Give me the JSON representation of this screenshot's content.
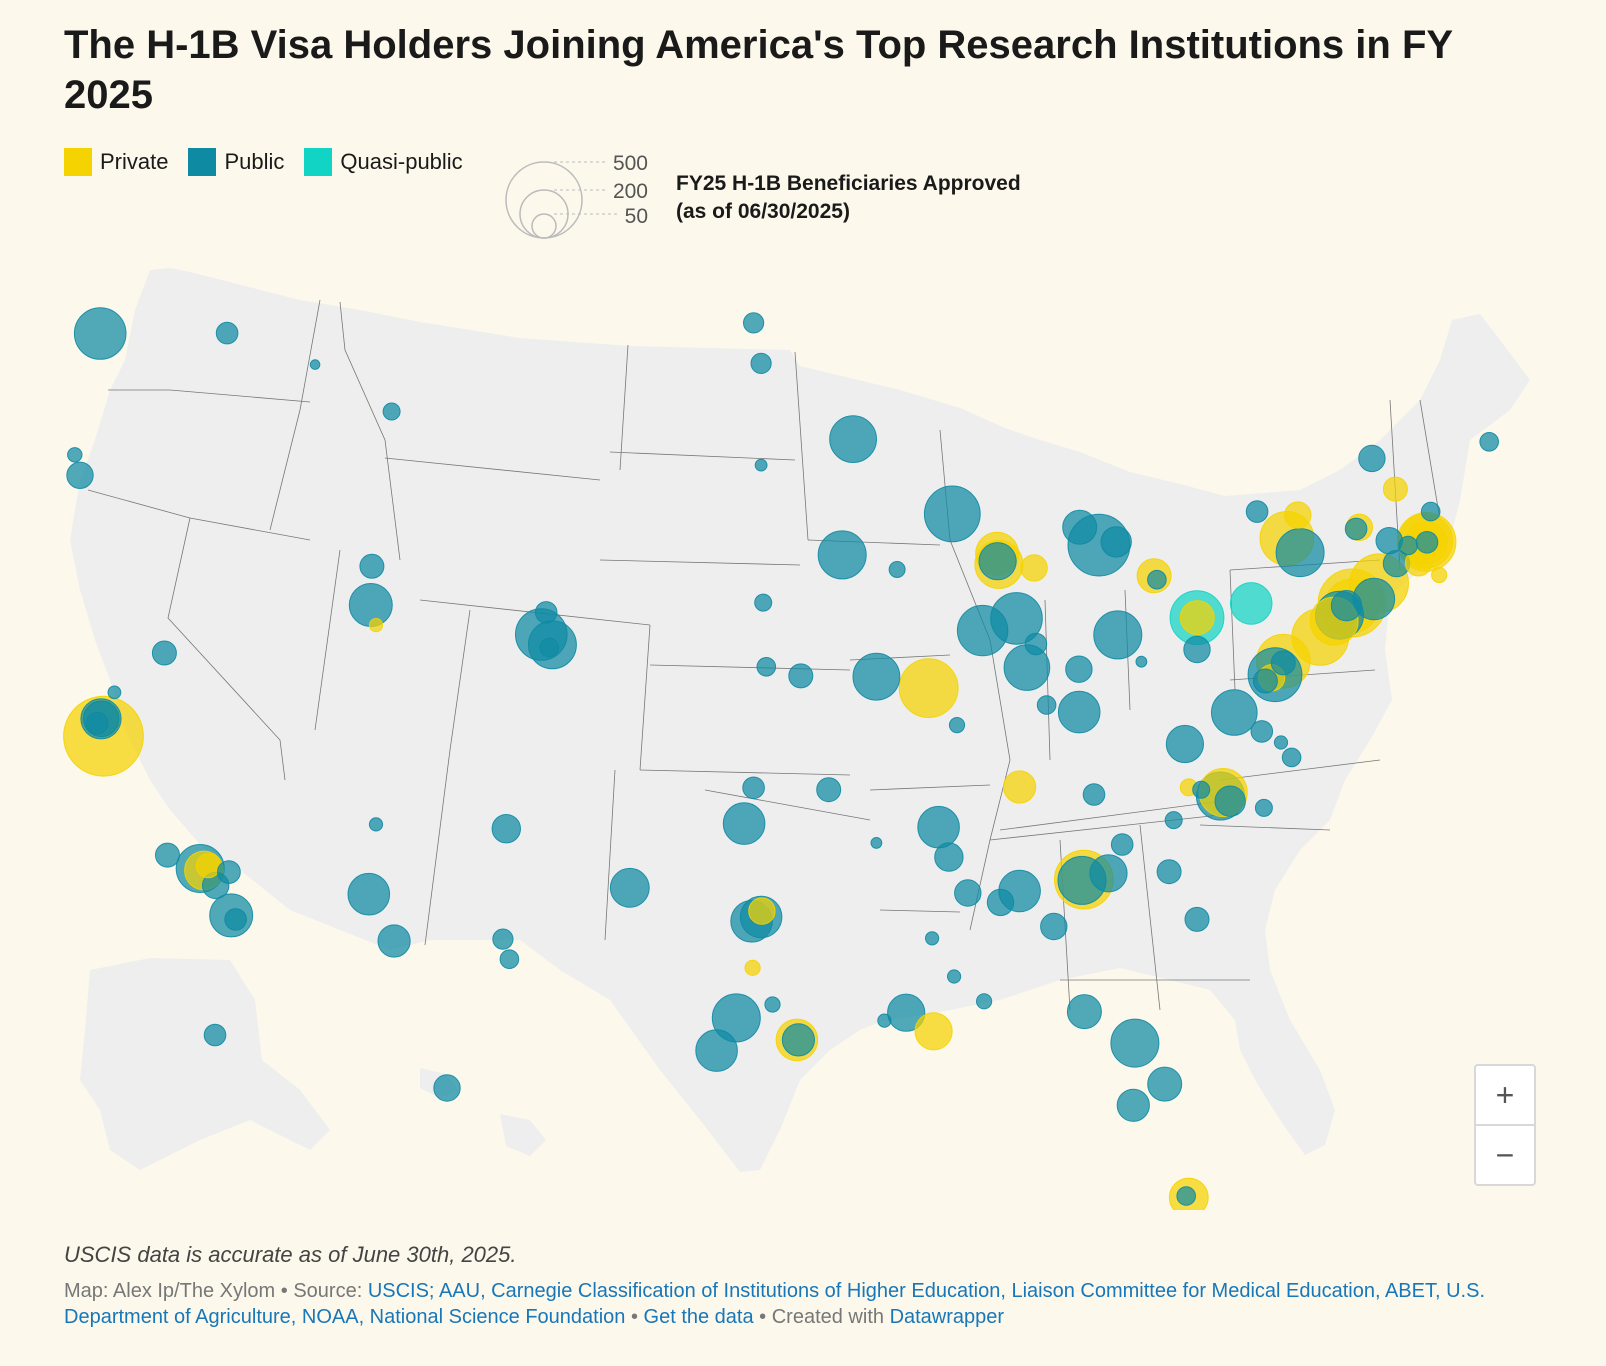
{
  "title": "The H-1B Visa Holders Joining America's Top Research Institutions in FY 2025",
  "colors": {
    "private": "#f5d300",
    "public": "#0f8aa3",
    "quasi_public": "#12d4c4",
    "land": "#eeeeee",
    "border": "#777777",
    "background": "#fcf8ec"
  },
  "legend": {
    "categories": [
      {
        "name": "private",
        "label": "Private",
        "color": "#f5d300"
      },
      {
        "name": "public",
        "label": "Public",
        "color": "#0f8aa3"
      },
      {
        "name": "quasi-public",
        "label": "Quasi-public",
        "color": "#12d4c4"
      }
    ],
    "size_values": [
      "500",
      "200",
      "50"
    ],
    "size_title_line1": "FY25 H-1B Beneficiaries Approved",
    "size_title_line2": "(as of 06/30/2025)"
  },
  "zoom": {
    "in_label": "+",
    "out_label": "−"
  },
  "note": "USCIS data is accurate as of June 30th, 2025.",
  "footer": {
    "map_credit": "Map: Alex Ip/The Xylom",
    "sep1": " • Source: ",
    "sources": "USCIS; AAU, Carnegie Classification of Institutions of Higher Education, Liaison Committee for Medical Education, ABET, U.S. Department of Agriculture, NOAA, National Science Foundation",
    "sep2": " • ",
    "get_data": "Get the data",
    "sep3": " • Created with ",
    "datawrapper": "Datawrapper"
  },
  "map_data": {
    "scale": "sqrt",
    "points": [
      {
        "lon": -122.3,
        "lat": 47.65,
        "type": "public",
        "value": 230
      },
      {
        "lon": -117.4,
        "lat": 47.66,
        "type": "public",
        "value": 40
      },
      {
        "lon": -123.08,
        "lat": 44.05,
        "type": "public",
        "value": 60
      },
      {
        "lon": -123.28,
        "lat": 44.57,
        "type": "public",
        "value": 18
      },
      {
        "lon": -111.05,
        "lat": 45.67,
        "type": "public",
        "value": 25
      },
      {
        "lon": -114.0,
        "lat": 46.86,
        "type": "public",
        "value": 8
      },
      {
        "lon": -122.27,
        "lat": 37.87,
        "type": "public",
        "value": 140
      },
      {
        "lon": -122.17,
        "lat": 37.43,
        "type": "private",
        "value": 550
      },
      {
        "lon": -122.26,
        "lat": 37.87,
        "type": "public",
        "value": 110
      },
      {
        "lon": -122.42,
        "lat": 37.76,
        "type": "public",
        "value": 40
      },
      {
        "lon": -121.75,
        "lat": 38.54,
        "type": "public",
        "value": 14
      },
      {
        "lon": -119.7,
        "lat": 34.41,
        "type": "public",
        "value": 50
      },
      {
        "lon": -118.44,
        "lat": 34.07,
        "type": "public",
        "value": 200
      },
      {
        "lon": -118.29,
        "lat": 34.02,
        "type": "private",
        "value": 130
      },
      {
        "lon": -118.13,
        "lat": 34.14,
        "type": "private",
        "value": 50
      },
      {
        "lon": -117.84,
        "lat": 33.64,
        "type": "public",
        "value": 60
      },
      {
        "lon": -117.33,
        "lat": 33.98,
        "type": "public",
        "value": 45
      },
      {
        "lon": -117.24,
        "lat": 32.88,
        "type": "public",
        "value": 160
      },
      {
        "lon": -117.07,
        "lat": 32.78,
        "type": "public",
        "value": 40
      },
      {
        "lon": -119.82,
        "lat": 39.54,
        "type": "public",
        "value": 50
      },
      {
        "lon": -111.85,
        "lat": 40.76,
        "type": "public",
        "value": 160
      },
      {
        "lon": -111.81,
        "lat": 41.74,
        "type": "public",
        "value": 50
      },
      {
        "lon": -111.65,
        "lat": 40.25,
        "type": "private",
        "value": 15
      },
      {
        "lon": -111.93,
        "lat": 33.42,
        "type": "public",
        "value": 150
      },
      {
        "lon": -110.95,
        "lat": 32.23,
        "type": "public",
        "value": 90
      },
      {
        "lon": -111.65,
        "lat": 35.19,
        "type": "public",
        "value": 15
      },
      {
        "lon": -106.62,
        "lat": 35.08,
        "type": "public",
        "value": 70
      },
      {
        "lon": -106.75,
        "lat": 32.28,
        "type": "public",
        "value": 35
      },
      {
        "lon": -106.5,
        "lat": 31.77,
        "type": "public",
        "value": 30
      },
      {
        "lon": -105.27,
        "lat": 40.01,
        "type": "public",
        "value": 230
      },
      {
        "lon": -105.08,
        "lat": 40.57,
        "type": "public",
        "value": 40
      },
      {
        "lon": -104.84,
        "lat": 39.75,
        "type": "public",
        "value": 200
      },
      {
        "lon": -104.96,
        "lat": 39.68,
        "type": "public",
        "value": 30
      },
      {
        "lon": -101.85,
        "lat": 33.58,
        "type": "public",
        "value": 130
      },
      {
        "lon": -98.5,
        "lat": 29.45,
        "type": "public",
        "value": 150
      },
      {
        "lon": -97.74,
        "lat": 30.28,
        "type": "public",
        "value": 200
      },
      {
        "lon": -97.15,
        "lat": 32.73,
        "type": "public",
        "value": 150
      },
      {
        "lon": -96.78,
        "lat": 32.84,
        "type": "public",
        "value": 150
      },
      {
        "lon": -96.75,
        "lat": 32.99,
        "type": "private",
        "value": 60
      },
      {
        "lon": -96.34,
        "lat": 30.62,
        "type": "public",
        "value": 20
      },
      {
        "lon": -95.4,
        "lat": 29.72,
        "type": "private",
        "value": 150
      },
      {
        "lon": -95.34,
        "lat": 29.72,
        "type": "public",
        "value": 90
      },
      {
        "lon": -97.11,
        "lat": 31.55,
        "type": "private",
        "value": 20
      },
      {
        "lon": -97.44,
        "lat": 35.21,
        "type": "public",
        "value": 150
      },
      {
        "lon": -97.07,
        "lat": 36.12,
        "type": "public",
        "value": 40
      },
      {
        "lon": -96.7,
        "lat": 40.82,
        "type": "public",
        "value": 25
      },
      {
        "lon": -96.58,
        "lat": 39.19,
        "type": "public",
        "value": 30
      },
      {
        "lon": -95.25,
        "lat": 38.96,
        "type": "public",
        "value": 50
      },
      {
        "lon": -96.78,
        "lat": 46.89,
        "type": "public",
        "value": 35
      },
      {
        "lon": -97.07,
        "lat": 47.92,
        "type": "public",
        "value": 35
      },
      {
        "lon": -96.78,
        "lat": 44.31,
        "type": "public",
        "value": 12
      },
      {
        "lon": -93.23,
        "lat": 44.97,
        "type": "public",
        "value": 190
      },
      {
        "lon": -89.4,
        "lat": 43.07,
        "type": "public",
        "value": 270
      },
      {
        "lon": -87.6,
        "lat": 41.79,
        "type": "private",
        "value": 200
      },
      {
        "lon": -87.67,
        "lat": 42.06,
        "type": "private",
        "value": 160
      },
      {
        "lon": -87.65,
        "lat": 41.87,
        "type": "public",
        "value": 120
      },
      {
        "lon": -88.23,
        "lat": 40.11,
        "type": "public",
        "value": 220
      },
      {
        "lon": -91.53,
        "lat": 41.66,
        "type": "public",
        "value": 22
      },
      {
        "lon": -93.65,
        "lat": 42.03,
        "type": "public",
        "value": 200
      },
      {
        "lon": -92.33,
        "lat": 38.94,
        "type": "public",
        "value": 190
      },
      {
        "lon": -90.31,
        "lat": 38.65,
        "type": "private",
        "value": 300
      },
      {
        "lon": -89.22,
        "lat": 37.71,
        "type": "public",
        "value": 20
      },
      {
        "lon": -86.92,
        "lat": 40.42,
        "type": "public",
        "value": 230
      },
      {
        "lon": -86.52,
        "lat": 39.17,
        "type": "public",
        "value": 180
      },
      {
        "lon": -86.24,
        "lat": 41.7,
        "type": "private",
        "value": 60
      },
      {
        "lon": -86.17,
        "lat": 39.77,
        "type": "public",
        "value": 40
      },
      {
        "lon": -83.74,
        "lat": 42.28,
        "type": "public",
        "value": 330
      },
      {
        "lon": -84.48,
        "lat": 42.73,
        "type": "public",
        "value": 100
      },
      {
        "lon": -83.07,
        "lat": 42.36,
        "type": "public",
        "value": 80
      },
      {
        "lon": -83.01,
        "lat": 40.0,
        "type": "public",
        "value": 200
      },
      {
        "lon": -81.61,
        "lat": 41.5,
        "type": "private",
        "value": 100
      },
      {
        "lon": -81.5,
        "lat": 41.4,
        "type": "public",
        "value": 30
      },
      {
        "lon": -84.51,
        "lat": 39.13,
        "type": "public",
        "value": 60
      },
      {
        "lon": -82.1,
        "lat": 39.32,
        "type": "public",
        "value": 10
      },
      {
        "lon": -79.95,
        "lat": 40.44,
        "type": "quasi-public",
        "value": 250
      },
      {
        "lon": -79.94,
        "lat": 40.44,
        "type": "private",
        "value": 100
      },
      {
        "lon": -77.86,
        "lat": 40.8,
        "type": "quasi-public",
        "value": 150
      },
      {
        "lon": -79.95,
        "lat": 39.63,
        "type": "public",
        "value": 60
      },
      {
        "lon": -75.19,
        "lat": 39.95,
        "type": "private",
        "value": 280
      },
      {
        "lon": -76.62,
        "lat": 39.33,
        "type": "private",
        "value": 250
      },
      {
        "lon": -76.94,
        "lat": 38.99,
        "type": "public",
        "value": 250
      },
      {
        "lon": -76.62,
        "lat": 39.29,
        "type": "public",
        "value": 50
      },
      {
        "lon": -77.07,
        "lat": 38.91,
        "type": "private",
        "value": 60
      },
      {
        "lon": -77.31,
        "lat": 38.83,
        "type": "public",
        "value": 50
      },
      {
        "lon": -78.51,
        "lat": 38.03,
        "type": "public",
        "value": 180
      },
      {
        "lon": -80.42,
        "lat": 37.23,
        "type": "public",
        "value": 120
      },
      {
        "lon": -77.45,
        "lat": 37.55,
        "type": "public",
        "value": 40
      },
      {
        "lon": -76.3,
        "lat": 36.89,
        "type": "public",
        "value": 30
      },
      {
        "lon": -76.71,
        "lat": 37.27,
        "type": "public",
        "value": 15
      },
      {
        "lon": -79.05,
        "lat": 35.91,
        "type": "public",
        "value": 200
      },
      {
        "lon": -78.94,
        "lat": 36.0,
        "type": "private",
        "value": 200
      },
      {
        "lon": -78.67,
        "lat": 35.78,
        "type": "public",
        "value": 80
      },
      {
        "lon": -80.27,
        "lat": 36.13,
        "type": "private",
        "value": 25
      },
      {
        "lon": -77.37,
        "lat": 35.61,
        "type": "public",
        "value": 25
      },
      {
        "lon": -80.85,
        "lat": 35.3,
        "type": "public",
        "value": 25
      },
      {
        "lon": -79.79,
        "lat": 36.07,
        "type": "public",
        "value": 25
      },
      {
        "lon": -76.06,
        "lat": 43.04,
        "type": "private",
        "value": 60
      },
      {
        "lon": -76.48,
        "lat": 42.45,
        "type": "private",
        "value": 250
      },
      {
        "lon": -77.63,
        "lat": 43.13,
        "type": "public",
        "value": 40
      },
      {
        "lon": -75.97,
        "lat": 42.09,
        "type": "public",
        "value": 200
      },
      {
        "lon": -73.68,
        "lat": 42.73,
        "type": "private",
        "value": 60
      },
      {
        "lon": -73.81,
        "lat": 42.69,
        "type": "public",
        "value": 40
      },
      {
        "lon": -73.96,
        "lat": 40.81,
        "type": "private",
        "value": 400
      },
      {
        "lon": -73.99,
        "lat": 40.73,
        "type": "private",
        "value": 250
      },
      {
        "lon": -74.45,
        "lat": 40.5,
        "type": "public",
        "value": 200
      },
      {
        "lon": -74.66,
        "lat": 40.35,
        "type": "private",
        "value": 200
      },
      {
        "lon": -74.18,
        "lat": 40.74,
        "type": "public",
        "value": 80
      },
      {
        "lon": -73.12,
        "lat": 40.91,
        "type": "public",
        "value": 150
      },
      {
        "lon": -72.92,
        "lat": 41.31,
        "type": "private",
        "value": 300
      },
      {
        "lon": -72.25,
        "lat": 41.81,
        "type": "public",
        "value": 60
      },
      {
        "lon": -71.4,
        "lat": 41.83,
        "type": "private",
        "value": 60
      },
      {
        "lon": -71.09,
        "lat": 42.36,
        "type": "private",
        "value": 300
      },
      {
        "lon": -71.12,
        "lat": 42.38,
        "type": "private",
        "value": 250
      },
      {
        "lon": -71.1,
        "lat": 42.34,
        "type": "private",
        "value": 150
      },
      {
        "lon": -71.07,
        "lat": 42.35,
        "type": "public",
        "value": 40
      },
      {
        "lon": -72.53,
        "lat": 42.39,
        "type": "public",
        "value": 60
      },
      {
        "lon": -71.8,
        "lat": 42.27,
        "type": "public",
        "value": 30
      },
      {
        "lon": -72.29,
        "lat": 43.7,
        "type": "private",
        "value": 50
      },
      {
        "lon": -73.2,
        "lat": 44.48,
        "type": "public",
        "value": 60
      },
      {
        "lon": -70.93,
        "lat": 43.13,
        "type": "public",
        "value": 30
      },
      {
        "lon": -68.67,
        "lat": 44.9,
        "type": "public",
        "value": 30
      },
      {
        "lon": -70.6,
        "lat": 41.52,
        "type": "private",
        "value": 20
      },
      {
        "lon": -86.8,
        "lat": 36.14,
        "type": "private",
        "value": 90
      },
      {
        "lon": -83.93,
        "lat": 35.95,
        "type": "public",
        "value": 40
      },
      {
        "lon": -84.5,
        "lat": 38.04,
        "type": "public",
        "value": 150
      },
      {
        "lon": -85.76,
        "lat": 38.22,
        "type": "public",
        "value": 30
      },
      {
        "lon": -89.93,
        "lat": 35.12,
        "type": "public",
        "value": 150
      },
      {
        "lon": -88.8,
        "lat": 33.45,
        "type": "public",
        "value": 60
      },
      {
        "lon": -89.53,
        "lat": 34.36,
        "type": "public",
        "value": 70
      },
      {
        "lon": -90.18,
        "lat": 32.3,
        "type": "public",
        "value": 15
      },
      {
        "lon": -89.33,
        "lat": 31.33,
        "type": "public",
        "value": 15
      },
      {
        "lon": -86.8,
        "lat": 33.5,
        "type": "public",
        "value": 150
      },
      {
        "lon": -87.54,
        "lat": 33.21,
        "type": "public",
        "value": 60
      },
      {
        "lon": -85.48,
        "lat": 32.6,
        "type": "public",
        "value": 60
      },
      {
        "lon": -88.17,
        "lat": 30.7,
        "type": "public",
        "value": 20
      },
      {
        "lon": -84.32,
        "lat": 33.79,
        "type": "private",
        "value": 300
      },
      {
        "lon": -84.39,
        "lat": 33.77,
        "type": "public",
        "value": 200
      },
      {
        "lon": -83.37,
        "lat": 33.95,
        "type": "public",
        "value": 120
      },
      {
        "lon": -81.03,
        "lat": 33.99,
        "type": "public",
        "value": 50
      },
      {
        "lon": -82.84,
        "lat": 34.68,
        "type": "public",
        "value": 40
      },
      {
        "lon": -79.95,
        "lat": 32.78,
        "type": "public",
        "value": 50
      },
      {
        "lon": -84.3,
        "lat": 30.44,
        "type": "public",
        "value": 100
      },
      {
        "lon": -82.35,
        "lat": 29.64,
        "type": "public",
        "value": 200
      },
      {
        "lon": -81.2,
        "lat": 28.6,
        "type": "public",
        "value": 100
      },
      {
        "lon": -82.41,
        "lat": 28.06,
        "type": "public",
        "value": 90
      },
      {
        "lon": -80.27,
        "lat": 25.72,
        "type": "private",
        "value": 130
      },
      {
        "lon": -80.37,
        "lat": 25.76,
        "type": "public",
        "value": 30
      },
      {
        "lon": -91.18,
        "lat": 30.41,
        "type": "public",
        "value": 120
      },
      {
        "lon": -90.12,
        "lat": 29.94,
        "type": "private",
        "value": 120
      },
      {
        "lon": -92.02,
        "lat": 30.21,
        "type": "public",
        "value": 15
      },
      {
        "lon": -94.17,
        "lat": 36.07,
        "type": "public",
        "value": 50
      },
      {
        "lon": -92.33,
        "lat": 34.72,
        "type": "public",
        "value": 10
      },
      {
        "lon": -147.8,
        "lat": 64.86,
        "type": "public",
        "value": 40
      },
      {
        "lon": -157.82,
        "lat": 21.3,
        "type": "public",
        "value": 60
      }
    ]
  }
}
